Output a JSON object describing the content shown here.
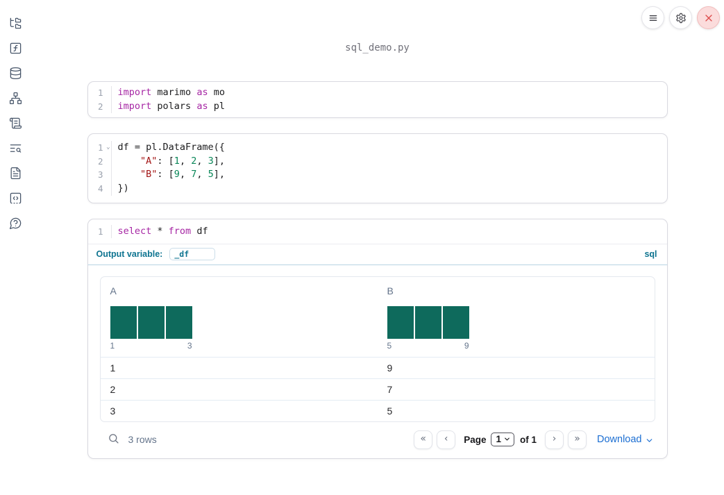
{
  "window": {
    "title": "sql_demo.py"
  },
  "sidebar": {
    "items": [
      {
        "name": "files",
        "icon": "file-tree-icon"
      },
      {
        "name": "variables",
        "icon": "function-square-icon"
      },
      {
        "name": "datasources",
        "icon": "database-icon"
      },
      {
        "name": "dependencies",
        "icon": "network-icon"
      },
      {
        "name": "scratchpad",
        "icon": "scroll-icon"
      },
      {
        "name": "logs",
        "icon": "text-search-icon"
      },
      {
        "name": "documentation",
        "icon": "file-text-icon"
      },
      {
        "name": "snippets",
        "icon": "code-square-icon"
      },
      {
        "name": "help",
        "icon": "help-bubble-icon"
      }
    ]
  },
  "topbar": {
    "buttons": [
      "notebook-menu",
      "settings",
      "shutdown"
    ]
  },
  "cells": [
    {
      "kind": "python",
      "lines": [
        {
          "number": "1",
          "tokens": [
            {
              "text": "import",
              "type": "keyword"
            },
            {
              "text": " marimo ",
              "type": "plain"
            },
            {
              "text": "as",
              "type": "keyword"
            },
            {
              "text": " mo",
              "type": "plain"
            }
          ]
        },
        {
          "number": "2",
          "tokens": [
            {
              "text": "import",
              "type": "keyword"
            },
            {
              "text": " polars ",
              "type": "plain"
            },
            {
              "text": "as",
              "type": "keyword"
            },
            {
              "text": " pl",
              "type": "plain"
            }
          ]
        }
      ]
    },
    {
      "kind": "python",
      "lines": [
        {
          "number": "1",
          "foldable": true,
          "tokens": [
            {
              "text": "df = pl.DataFrame({",
              "type": "plain"
            }
          ]
        },
        {
          "number": "2",
          "tokens": [
            {
              "text": "    ",
              "type": "plain"
            },
            {
              "text": "\"A\"",
              "type": "string"
            },
            {
              "text": ": [",
              "type": "plain"
            },
            {
              "text": "1",
              "type": "number"
            },
            {
              "text": ", ",
              "type": "plain"
            },
            {
              "text": "2",
              "type": "number"
            },
            {
              "text": ", ",
              "type": "plain"
            },
            {
              "text": "3",
              "type": "number"
            },
            {
              "text": "],",
              "type": "plain"
            }
          ]
        },
        {
          "number": "3",
          "tokens": [
            {
              "text": "    ",
              "type": "plain"
            },
            {
              "text": "\"B\"",
              "type": "string"
            },
            {
              "text": ": [",
              "type": "plain"
            },
            {
              "text": "9",
              "type": "number"
            },
            {
              "text": ", ",
              "type": "plain"
            },
            {
              "text": "7",
              "type": "number"
            },
            {
              "text": ", ",
              "type": "plain"
            },
            {
              "text": "5",
              "type": "number"
            },
            {
              "text": "],",
              "type": "plain"
            }
          ]
        },
        {
          "number": "4",
          "tokens": [
            {
              "text": "})",
              "type": "plain"
            }
          ]
        }
      ]
    },
    {
      "kind": "sql",
      "lines": [
        {
          "number": "1",
          "tokens": [
            {
              "text": "select",
              "type": "keyword"
            },
            {
              "text": " * ",
              "type": "plain"
            },
            {
              "text": "from",
              "type": "keyword"
            },
            {
              "text": " df",
              "type": "plain"
            }
          ]
        }
      ],
      "output_variable_label": "Output variable:",
      "output_variable_value": "_df",
      "language_badge": "sql"
    }
  ],
  "table": {
    "columns": [
      {
        "name": "A",
        "histogram": {
          "bars": [
            1,
            1,
            1
          ],
          "min_label": "1",
          "max_label": "3"
        }
      },
      {
        "name": "B",
        "histogram": {
          "bars": [
            1,
            1,
            1
          ],
          "min_label": "5",
          "max_label": "9"
        }
      }
    ],
    "rows": [
      [
        "1",
        "9"
      ],
      [
        "2",
        "7"
      ],
      [
        "3",
        "5"
      ]
    ],
    "footer": {
      "row_count": "3 rows",
      "page_label": "Page",
      "page_value": "1",
      "page_total": "of 1",
      "download_label": "Download",
      "icons": {
        "first": "«",
        "prev": "‹",
        "next": "›",
        "last": "»"
      }
    }
  },
  "colors": {
    "keyword": "#a626a4",
    "string": "#a31515",
    "number": "#098658",
    "bar": "#0e6a5c",
    "accent_blue": "#0e7490",
    "link_blue": "#1b6ed2",
    "close_red": "#dd4b4b"
  }
}
